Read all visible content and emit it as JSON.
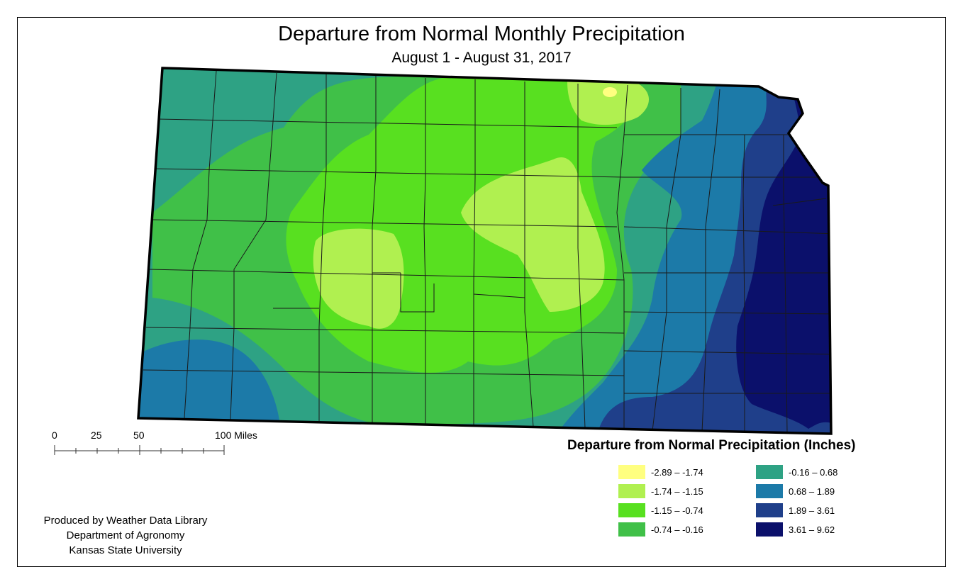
{
  "title": "Departure from Normal Monthly Precipitation",
  "subtitle": "August 1 - August 31, 2017",
  "scale_bar": {
    "labels": [
      "0",
      "25",
      "50",
      "100 Miles"
    ]
  },
  "legend": {
    "title": "Departure from Normal Precipitation (Inches)",
    "items": [
      {
        "label": "-2.89 – -1.74",
        "color": "#ffff80"
      },
      {
        "label": "-1.74 – -1.15",
        "color": "#b0f050"
      },
      {
        "label": "-1.15 – -0.74",
        "color": "#58e020"
      },
      {
        "label": "-0.74 – -0.16",
        "color": "#40c048"
      },
      {
        "label": "-0.16 – 0.68",
        "color": "#2ea284"
      },
      {
        "label": "0.68 – 1.89",
        "color": "#1c7aa8"
      },
      {
        "label": "1.89 – 3.61",
        "color": "#1f3f8a"
      },
      {
        "label": "3.61 – 9.62",
        "color": "#0b106b"
      }
    ]
  },
  "credit": {
    "line1": "Produced by Weather Data Library",
    "line2": "Department of Agronomy",
    "line3": "Kansas State University"
  }
}
